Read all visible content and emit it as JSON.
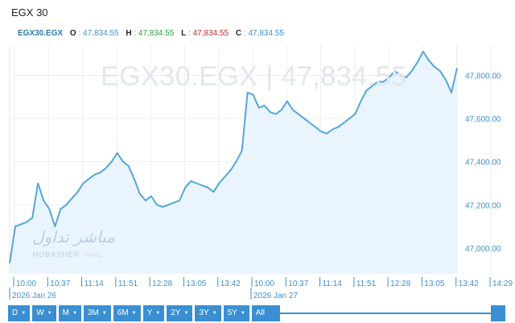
{
  "header": {
    "title": "EGX 30"
  },
  "ohlc": {
    "symbol": "EGX30.EGX",
    "o_label": "O",
    "o_value": ": 47,834.55",
    "h_label": "H",
    "h_value": ": 47,834.55",
    "l_label": "L",
    "l_value": ": 47,834.55",
    "c_label": "C",
    "c_value": ": 47,834.55"
  },
  "watermark": {
    "text": "EGX30.EGX  |  47,834.55"
  },
  "logo": {
    "arabic": "مباشر تداول",
    "latin": "MUBASHER",
    "latin_small": "TRADE"
  },
  "colors": {
    "line": "#55a6d9",
    "fill": "#eaf4fc",
    "grid": "#eeeeee",
    "button": "#3a8fd2",
    "axis_text": "#3f90c8"
  },
  "toolbar": {
    "buttons": [
      {
        "label": "D"
      },
      {
        "label": "W"
      },
      {
        "label": "M"
      },
      {
        "label": "3M"
      },
      {
        "label": "6M"
      },
      {
        "label": "Y"
      },
      {
        "label": "2Y"
      },
      {
        "label": "3Y"
      },
      {
        "label": "5Y"
      },
      {
        "label": "All"
      }
    ]
  },
  "chart_data": {
    "type": "area",
    "y_ticks": [
      47000,
      47200,
      47400,
      47600,
      47800
    ],
    "y_tick_labels": [
      "47,000.00",
      "47,200.00",
      "47,400.00",
      "47,600.00",
      "47,800.00"
    ],
    "ylim": [
      46880,
      47940
    ],
    "x_ticks": [
      "10:00",
      "10:37",
      "11:14",
      "11:51",
      "12:28",
      "13:05",
      "13:42",
      "10:00",
      "10:37",
      "11:14",
      "11:51",
      "12:28",
      "13:05",
      "13:42",
      "14:29"
    ],
    "date_labels": [
      "2026 Jan 26",
      "2026 Jan 27"
    ],
    "grid": true,
    "values": [
      46930,
      47100,
      47110,
      47120,
      47140,
      47300,
      47220,
      47180,
      47100,
      47180,
      47200,
      47230,
      47260,
      47300,
      47320,
      47340,
      47350,
      47370,
      47400,
      47440,
      47400,
      47380,
      47320,
      47250,
      47220,
      47240,
      47200,
      47190,
      47200,
      47210,
      47220,
      47280,
      47310,
      47300,
      47290,
      47280,
      47260,
      47300,
      47330,
      47360,
      47400,
      47450,
      47720,
      47710,
      47650,
      47660,
      47630,
      47620,
      47640,
      47680,
      47640,
      47620,
      47600,
      47580,
      47560,
      47540,
      47530,
      47550,
      47560,
      47580,
      47600,
      47620,
      47680,
      47730,
      47750,
      47770,
      47770,
      47790,
      47820,
      47800,
      47790,
      47820,
      47860,
      47910,
      47870,
      47840,
      47820,
      47780,
      47720,
      47834.55
    ]
  }
}
